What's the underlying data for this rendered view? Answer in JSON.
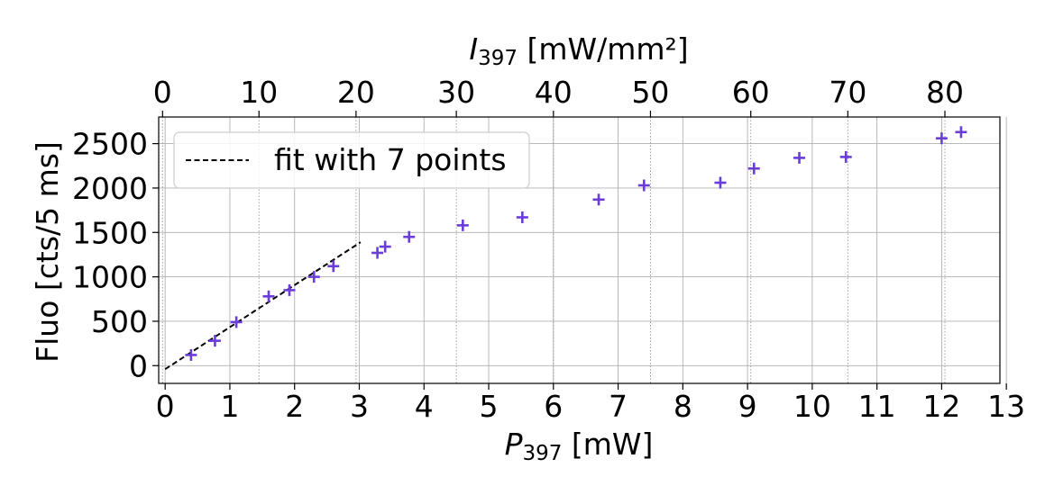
{
  "chart_data": {
    "type": "scatter",
    "x_axis": {
      "label_prefix": "P",
      "label_sub": "397",
      "label_suffix": " [mW]",
      "lim": [
        -0.1,
        12.9
      ],
      "ticks": [
        0,
        1,
        2,
        3,
        4,
        5,
        6,
        7,
        8,
        9,
        10,
        11,
        12,
        13
      ]
    },
    "top_axis": {
      "label_prefix": "I",
      "label_sub": "397",
      "label_suffix": " [mW/mm²]",
      "ticks": [
        0,
        10,
        20,
        30,
        40,
        50,
        60,
        70,
        80
      ],
      "tick_positions_in_x_units": [
        -0.04,
        1.45,
        2.95,
        4.5,
        6.0,
        7.5,
        9.05,
        10.55,
        12.05
      ]
    },
    "y_axis": {
      "label": "Fluo [cts/5 ms]",
      "lim": [
        -200,
        2800
      ],
      "ticks": [
        0,
        500,
        1000,
        1500,
        2000,
        2500
      ]
    },
    "grid": true,
    "series": [
      {
        "marker": "+",
        "color": "#6a3ddb",
        "x": [
          0.4,
          0.77,
          1.1,
          1.6,
          1.92,
          2.3,
          2.6,
          3.28,
          3.4,
          3.77,
          4.6,
          5.52,
          6.7,
          7.4,
          8.58,
          9.1,
          9.8,
          10.52,
          12.0,
          12.3
        ],
        "y": [
          120,
          280,
          490,
          780,
          850,
          1000,
          1120,
          1270,
          1340,
          1450,
          1580,
          1670,
          1870,
          2030,
          2060,
          2220,
          2340,
          2350,
          2560,
          2630
        ]
      },
      {
        "name": "fit with 7 points",
        "type": "line",
        "style": "dashed",
        "color": "#000000",
        "x": [
          0.0,
          3.02
        ],
        "y": [
          -40,
          1390
        ]
      }
    ],
    "legend": {
      "placement": "top-left",
      "entries": [
        "fit with 7 points"
      ]
    }
  }
}
